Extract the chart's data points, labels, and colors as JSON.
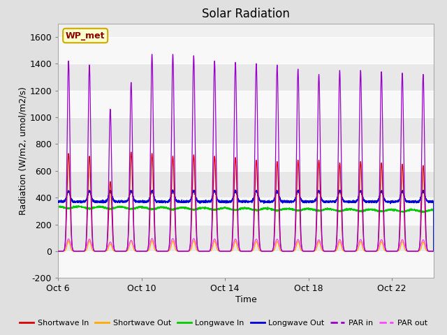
{
  "title": "Solar Radiation",
  "xlabel": "Time",
  "ylabel": "Radiation (W/m2, umol/m2/s)",
  "ylim": [
    -200,
    1700
  ],
  "yticks": [
    -200,
    0,
    200,
    400,
    600,
    800,
    1000,
    1200,
    1400,
    1600
  ],
  "xtick_labels": [
    "Oct 6",
    "Oct 10",
    "Oct 14",
    "Oct 18",
    "Oct 22"
  ],
  "xtick_positions": [
    0,
    4,
    8,
    12,
    16
  ],
  "n_days": 18,
  "fig_bg_color": "#e0e0e0",
  "plot_bg_color": "#f0f0f0",
  "inner_bg_color": "#e8e8e8",
  "colors": {
    "shortwave_in": "#dd0000",
    "shortwave_out": "#ffaa00",
    "longwave_in": "#00cc00",
    "longwave_out": "#0000dd",
    "par_in": "#9900cc",
    "par_out": "#ff44ff"
  },
  "legend_labels": [
    "Shortwave In",
    "Shortwave Out",
    "Longwave In",
    "Longwave Out",
    "PAR in",
    "PAR out"
  ],
  "station_label": "WP_met",
  "station_box_color": "#ffffcc",
  "station_box_edge": "#ccaa00"
}
